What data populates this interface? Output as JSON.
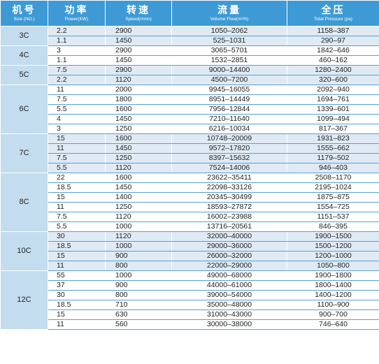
{
  "headers": {
    "model": {
      "cn": "机号",
      "en": "Size (NO.)"
    },
    "power": {
      "cn": "功率",
      "en": "Power(KW)"
    },
    "speed": {
      "cn": "转速",
      "en": "Speed(r/min)"
    },
    "flow": {
      "cn": "流量",
      "en": "Volume Flow(m³/h)"
    },
    "pressure": {
      "cn": "全压",
      "en": "Total Pressure (pa)"
    }
  },
  "groups": [
    {
      "model": "3C",
      "rows": [
        {
          "power": "2.2",
          "speed": "2900",
          "flow": "1050–2062",
          "pressure": "1158–387"
        },
        {
          "power": "1.1",
          "speed": "1450",
          "flow": "525–1031",
          "pressure": "290–97"
        }
      ]
    },
    {
      "model": "4C",
      "rows": [
        {
          "power": "3",
          "speed": "2900",
          "flow": "3065–5701",
          "pressure": "1842–646"
        },
        {
          "power": "1.1",
          "speed": "1450",
          "flow": "1532–2851",
          "pressure": "460–162"
        }
      ]
    },
    {
      "model": "5C",
      "rows": [
        {
          "power": "7.5",
          "speed": "2900",
          "flow": "9000–14400",
          "pressure": "1280–2400"
        },
        {
          "power": "2.2",
          "speed": "1120",
          "flow": "4500–7200",
          "pressure": "320–600"
        }
      ]
    },
    {
      "model": "6C",
      "rows": [
        {
          "power": "11",
          "speed": "2000",
          "flow": "9945–16055",
          "pressure": "2092–940"
        },
        {
          "power": "7.5",
          "speed": "1800",
          "flow": "8951–14449",
          "pressure": "1694–761"
        },
        {
          "power": "5.5",
          "speed": "1600",
          "flow": "7956–12844",
          "pressure": "1339–601"
        },
        {
          "power": "4",
          "speed": "1450",
          "flow": "7210–11640",
          "pressure": "1099–494"
        },
        {
          "power": "3",
          "speed": "1250",
          "flow": "6216–10034",
          "pressure": "817–367"
        }
      ]
    },
    {
      "model": "7C",
      "rows": [
        {
          "power": "15",
          "speed": "1600",
          "flow": "10748–20009",
          "pressure": "1931–823"
        },
        {
          "power": "11",
          "speed": "1450",
          "flow": "9572–17820",
          "pressure": "1555–662"
        },
        {
          "power": "7.5",
          "speed": "1250",
          "flow": "8397–15632",
          "pressure": "1179–502"
        },
        {
          "power": "5.5",
          "speed": "1120",
          "flow": "7524–14006",
          "pressure": "946–403"
        }
      ]
    },
    {
      "model": "8C",
      "rows": [
        {
          "power": "22",
          "speed": "1600",
          "flow": "23622–35411",
          "pressure": "2508–1170"
        },
        {
          "power": "18.5",
          "speed": "1450",
          "flow": "22098–33126",
          "pressure": "2195–1024"
        },
        {
          "power": "15",
          "speed": "1400",
          "flow": "20345–30499",
          "pressure": "1875–875"
        },
        {
          "power": "11",
          "speed": "1250",
          "flow": "18593–27872",
          "pressure": "1554–725"
        },
        {
          "power": "7.5",
          "speed": "1120",
          "flow": "16002–23988",
          "pressure": "1151–537"
        },
        {
          "power": "5.5",
          "speed": "1000",
          "flow": "13716–20561",
          "pressure": "846–395"
        }
      ]
    },
    {
      "model": "10C",
      "rows": [
        {
          "power": "30",
          "speed": "1120",
          "flow": "32000–40000",
          "pressure": "1900–1500"
        },
        {
          "power": "18.5",
          "speed": "1000",
          "flow": "29000–36000",
          "pressure": "1500–1200"
        },
        {
          "power": "15",
          "speed": "900",
          "flow": "26000–32000",
          "pressure": "1200–1000"
        },
        {
          "power": "11",
          "speed": "800",
          "flow": "22000–29000",
          "pressure": "1050–800"
        }
      ]
    },
    {
      "model": "12C",
      "rows": [
        {
          "power": "55",
          "speed": "1000",
          "flow": "49000–68000",
          "pressure": "1900–1800"
        },
        {
          "power": "37",
          "speed": "900",
          "flow": "44000–61000",
          "pressure": "1800–1400"
        },
        {
          "power": "30",
          "speed": "800",
          "flow": "39000–54000",
          "pressure": "1400–1200"
        },
        {
          "power": "18.5",
          "speed": "710",
          "flow": "35000–48000",
          "pressure": "1100–900"
        },
        {
          "power": "15",
          "speed": "630",
          "flow": "31000–43000",
          "pressure": "900–700"
        },
        {
          "power": "11",
          "speed": "560",
          "flow": "30000–38000",
          "pressure": "746–640"
        }
      ]
    }
  ]
}
